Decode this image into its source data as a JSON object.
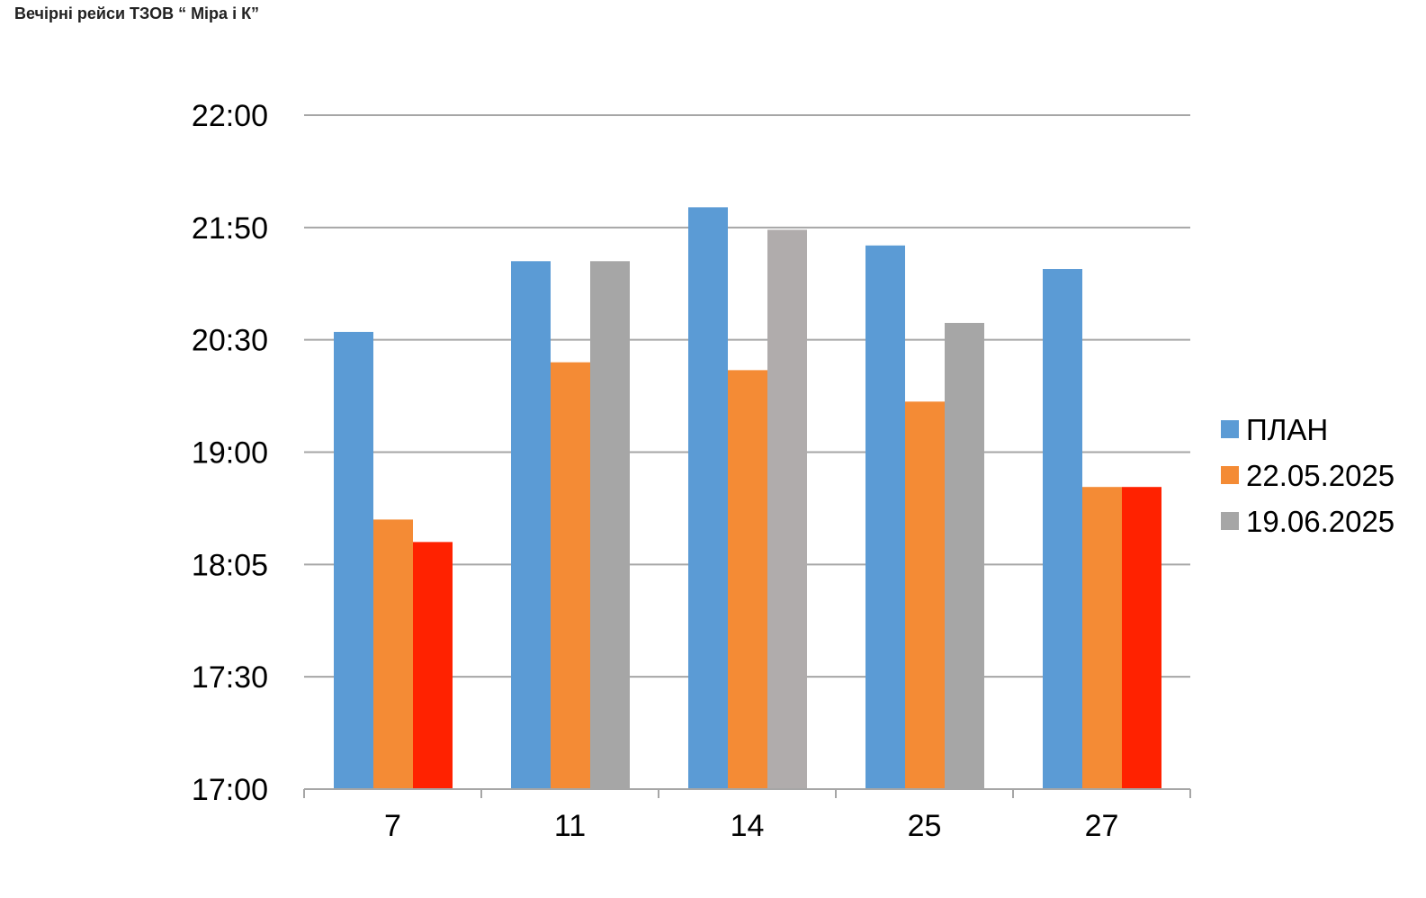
{
  "title": "Вечірні рейси ТЗОВ “ Міра і К”",
  "chart_data": {
    "type": "bar",
    "title": "Вечірні рейси ТЗОВ “ Міра і К”",
    "xlabel": "",
    "ylabel": "",
    "categories": [
      "7",
      "11",
      "14",
      "25",
      "27"
    ],
    "y_ticks": [
      {
        "label": "17:00",
        "value": 0
      },
      {
        "label": "17:30",
        "value": 1
      },
      {
        "label": "18:05",
        "value": 2
      },
      {
        "label": "19:00",
        "value": 3
      },
      {
        "label": "20:30",
        "value": 4
      },
      {
        "label": "21:50",
        "value": 5
      },
      {
        "label": "22:00",
        "value": 6
      }
    ],
    "ylim": [
      0,
      6
    ],
    "grid": true,
    "legend_position": "right",
    "series": [
      {
        "name": "ПЛАН",
        "color": "#5B9BD5",
        "values": [
          4.07,
          4.7,
          5.18,
          4.84,
          4.63
        ]
      },
      {
        "name": "22.05.2025",
        "color": "#F48B35",
        "values": [
          2.4,
          3.8,
          3.73,
          3.45,
          2.69
        ]
      },
      {
        "name": "19.06.2025",
        "color": "#A6A6A6",
        "values": [
          2.2,
          4.7,
          4.98,
          4.15,
          2.69
        ],
        "point_colors": [
          "#FF2200",
          "#A6A6A6",
          "#B0ACAC",
          "#A6A6A6",
          "#FF2200"
        ]
      }
    ]
  }
}
